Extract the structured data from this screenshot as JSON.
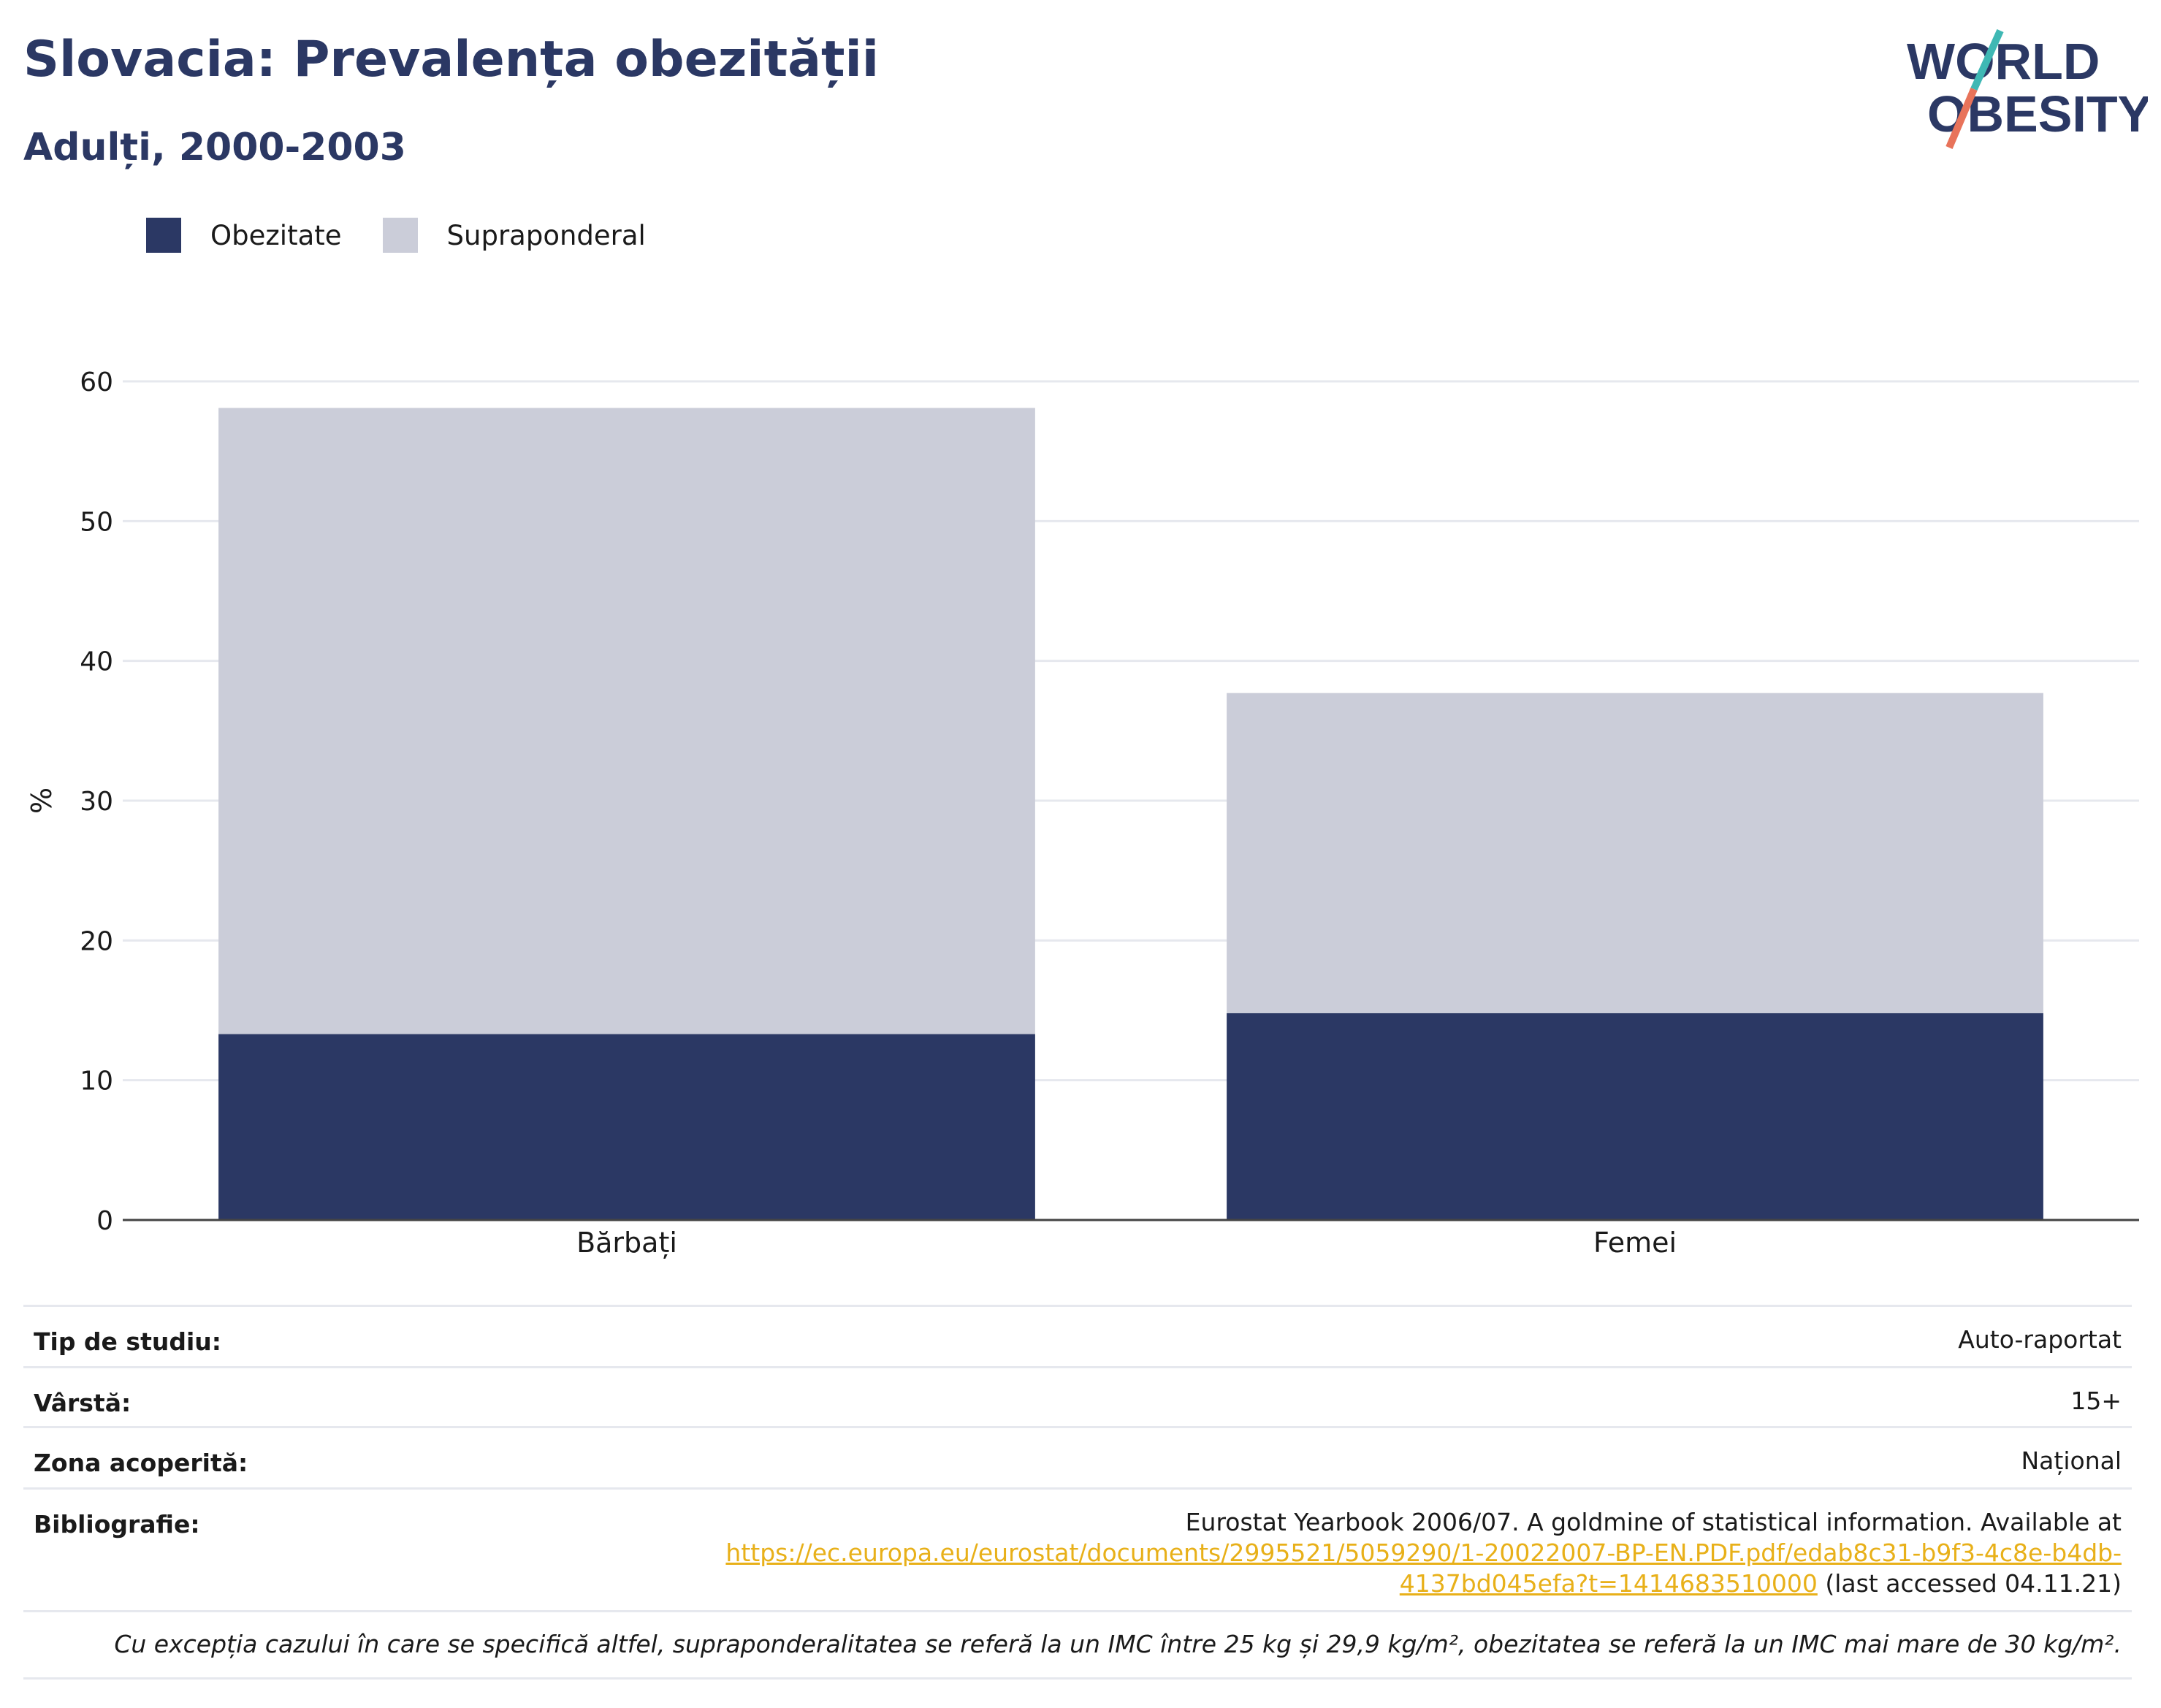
{
  "header": {
    "title": "Slovacia: Prevalența obezității",
    "subtitle": "Adulți, 2000-2003"
  },
  "logo": {
    "line1": "WORLD",
    "line2": "OBESITY",
    "slash_colors": [
      "#3fb8b4",
      "#e8735a"
    ]
  },
  "chart_data": {
    "type": "bar",
    "stacked": true,
    "categories": [
      "Bărbați",
      "Femei"
    ],
    "series": [
      {
        "name": "Obezitate",
        "values": [
          13.3,
          14.8
        ],
        "color": "#2b3864"
      },
      {
        "name": "Supraponderal",
        "values": [
          44.8,
          22.9
        ],
        "color": "#cbcdd9"
      }
    ],
    "ylabel": "%",
    "ylim": [
      0,
      60
    ],
    "yticks": [
      "0",
      "10",
      "20",
      "30",
      "40",
      "50",
      "60"
    ],
    "grid": true,
    "legend": "top-left"
  },
  "info": {
    "rows": [
      {
        "key": "Tip de studiu:",
        "value": "Auto-raportat"
      },
      {
        "key": "Vârstă:",
        "value": "15+"
      },
      {
        "key": "Zona acoperită:",
        "value": "Național"
      }
    ],
    "bibliography": {
      "key": "Bibliografie:",
      "text_before": "Eurostat Yearbook 2006/07. A goldmine of statistical information. Available at",
      "link_line1": "https://ec.europa.eu/eurostat/documents/2995521/5059290/1-20022007-BP-EN.PDF.pdf/edab8c31-b9f3-4c8e-b4db-",
      "link_line2": "4137bd045efa?t=1414683510000",
      "text_after": " (last accessed 04.11.21)"
    },
    "note": "Cu excepția cazului în care se specifică altfel, supraponderalitatea se referă la un IMC între 25 kg și 29,9 kg/m², obezitatea se referă la un IMC mai mare de 30 kg/m²."
  }
}
